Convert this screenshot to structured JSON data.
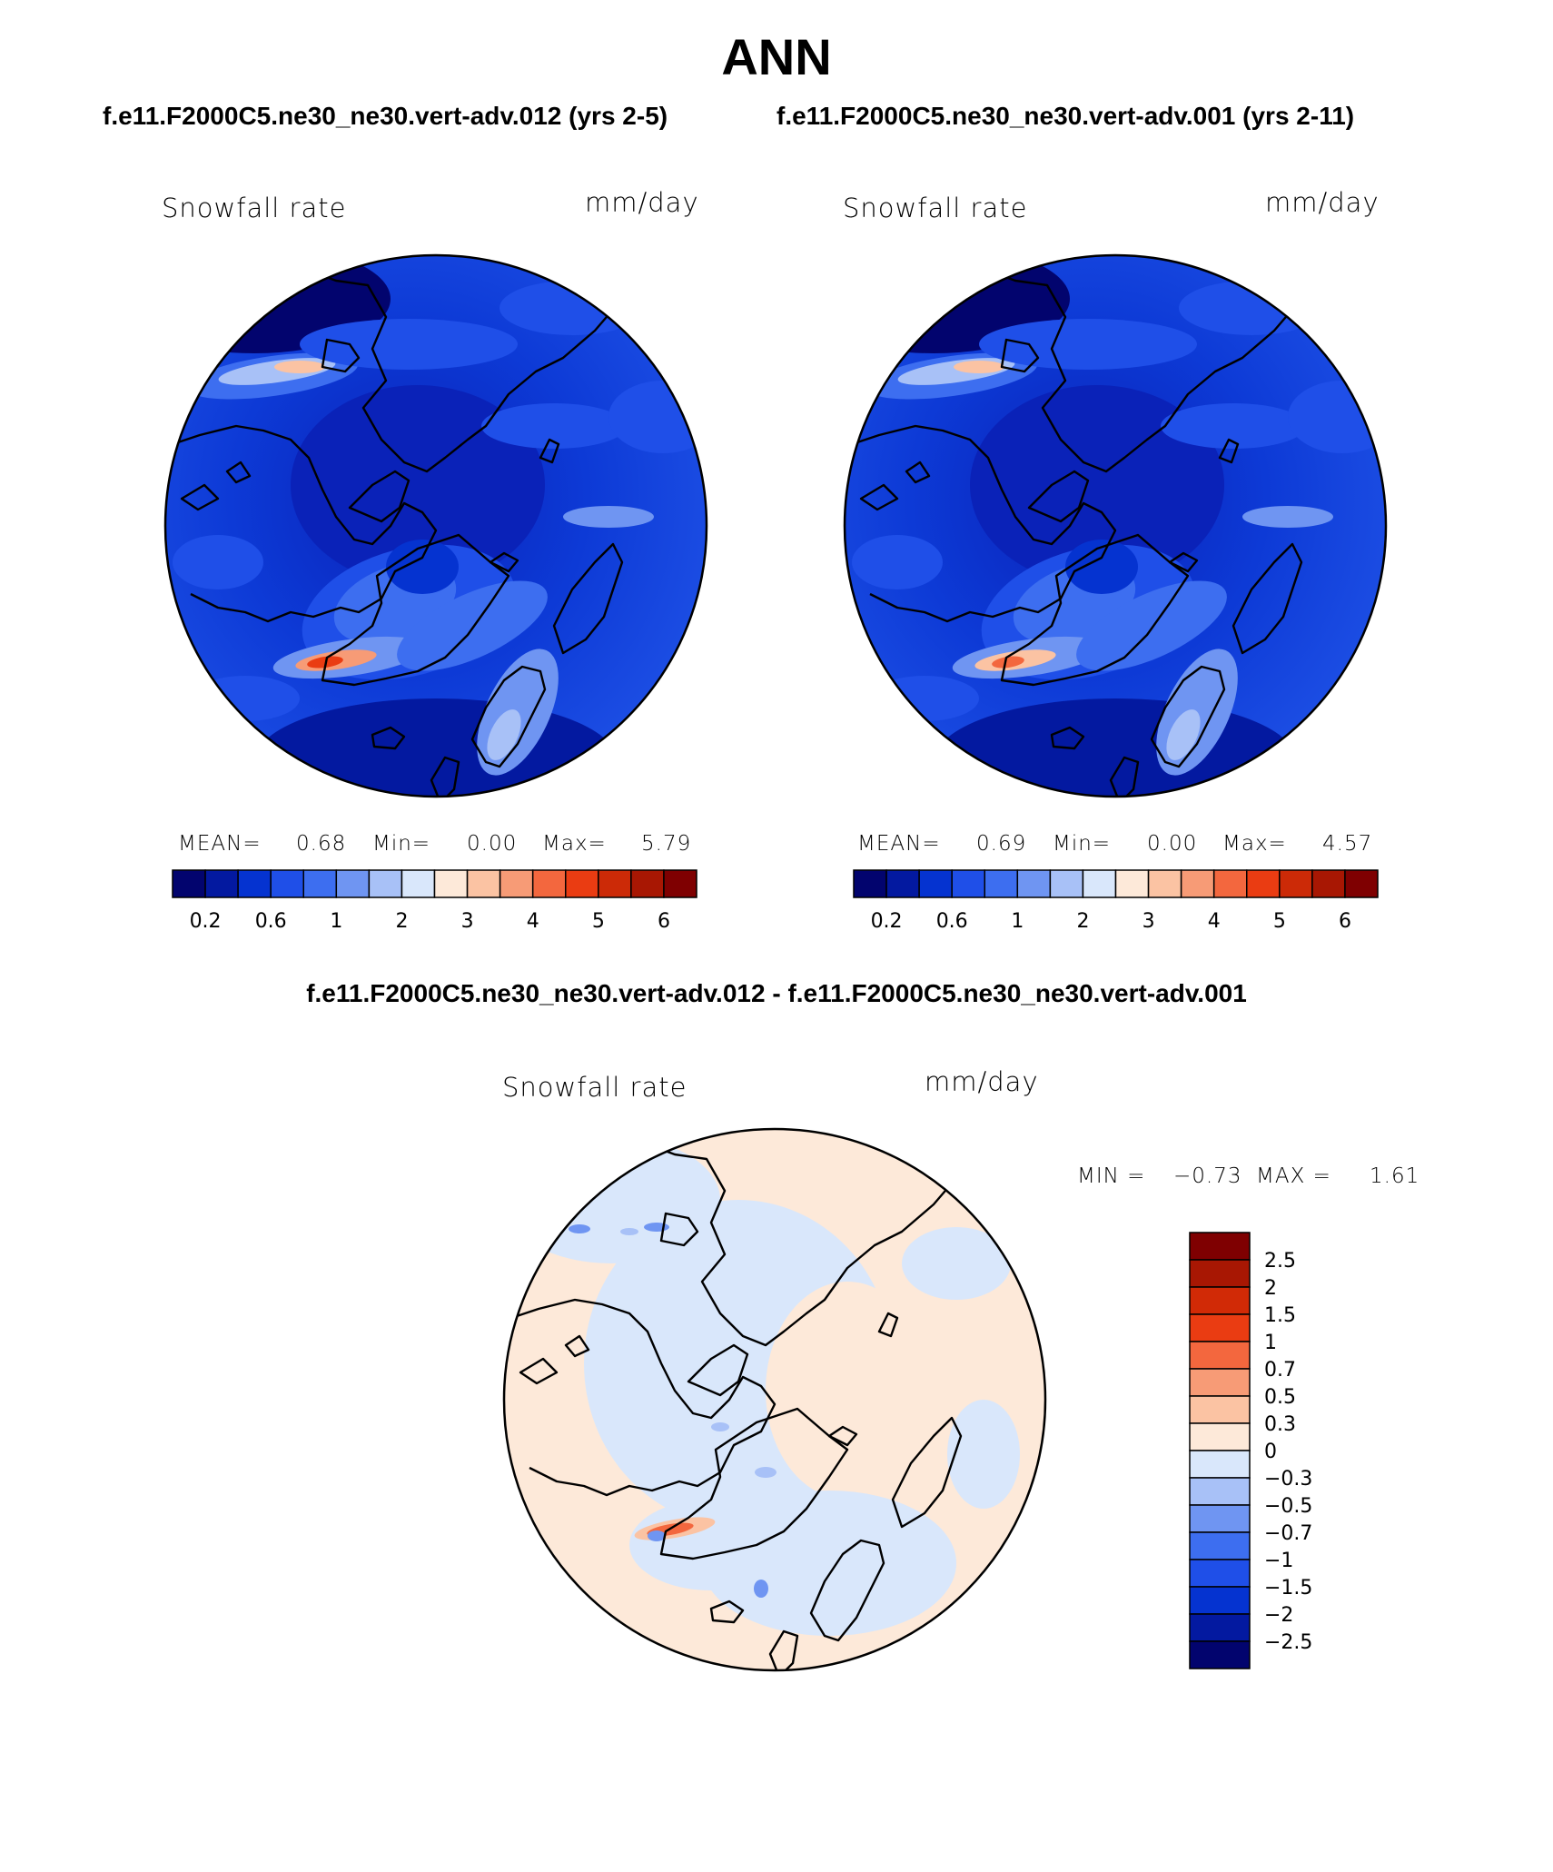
{
  "title": "ANN",
  "panels": [
    {
      "case_title": "f.e11.F2000C5.ne30_ne30.vert-adv.012 (yrs 2-5)",
      "variable": "Snowfall rate",
      "units": "mm/day",
      "mean_label": "MEAN=",
      "mean_value": "0.68",
      "min_label": "Min=",
      "min_value": "0.00",
      "max_label": "Max=",
      "max_value": "5.79"
    },
    {
      "case_title": "f.e11.F2000C5.ne30_ne30.vert-adv.001 (yrs 2-11)",
      "variable": "Snowfall rate",
      "units": "mm/day",
      "mean_label": "MEAN=",
      "mean_value": "0.69",
      "min_label": "Min=",
      "min_value": "0.00",
      "max_label": "Max=",
      "max_value": "4.57"
    }
  ],
  "difference": {
    "title": "f.e11.F2000C5.ne30_ne30.vert-adv.012 - f.e11.F2000C5.ne30_ne30.vert-adv.001",
    "variable": "Snowfall rate",
    "units": "mm/day",
    "min_label": "MIN =",
    "min_value": "−0.73",
    "max_label": "MAX =",
    "max_value": "1.61"
  },
  "chart_data": [
    {
      "type": "heatmap",
      "projection": "north-polar-stereographic",
      "title": "Snowfall rate",
      "units": "mm/day",
      "colorbar": {
        "orientation": "horizontal",
        "tick_labels": [
          "0.2",
          "0.6",
          "1",
          "2",
          "3",
          "4",
          "5",
          "6"
        ],
        "colors": [
          "#02046e",
          "#0319a0",
          "#0533d0",
          "#1f4fe8",
          "#3d6ef0",
          "#6f95f2",
          "#a8c1f7",
          "#d9e7fb",
          "#fde9d9",
          "#fbc3a3",
          "#f79b76",
          "#f3673e",
          "#ea3c12",
          "#cc2a07",
          "#a81703",
          "#7f0001"
        ]
      }
    },
    {
      "type": "heatmap",
      "projection": "north-polar-stereographic",
      "title": "Snowfall rate",
      "units": "mm/day",
      "colorbar": {
        "orientation": "horizontal",
        "tick_labels": [
          "0.2",
          "0.6",
          "1",
          "2",
          "3",
          "4",
          "5",
          "6"
        ],
        "colors": [
          "#02046e",
          "#0319a0",
          "#0533d0",
          "#1f4fe8",
          "#3d6ef0",
          "#6f95f2",
          "#a8c1f7",
          "#d9e7fb",
          "#fde9d9",
          "#fbc3a3",
          "#f79b76",
          "#f3673e",
          "#ea3c12",
          "#cc2a07",
          "#a81703",
          "#7f0001"
        ]
      }
    },
    {
      "type": "heatmap",
      "projection": "north-polar-stereographic",
      "title": "Snowfall rate",
      "units": "mm/day",
      "colorbar": {
        "orientation": "vertical",
        "tick_labels": [
          "2.5",
          "2",
          "1.5",
          "1",
          "0.7",
          "0.5",
          "0.3",
          "0",
          "−0.3",
          "−0.5",
          "−0.7",
          "−1",
          "−1.5",
          "−2",
          "−2.5"
        ],
        "colors": [
          "#7f0001",
          "#a81703",
          "#d12a06",
          "#ea3c12",
          "#f3673e",
          "#f79b76",
          "#fbc3a3",
          "#fde9d9",
          "#d9e7fb",
          "#a8c1f7",
          "#6f95f2",
          "#3d6ef0",
          "#1f4fe8",
          "#0533d0",
          "#0319a0",
          "#02046e"
        ]
      }
    }
  ]
}
